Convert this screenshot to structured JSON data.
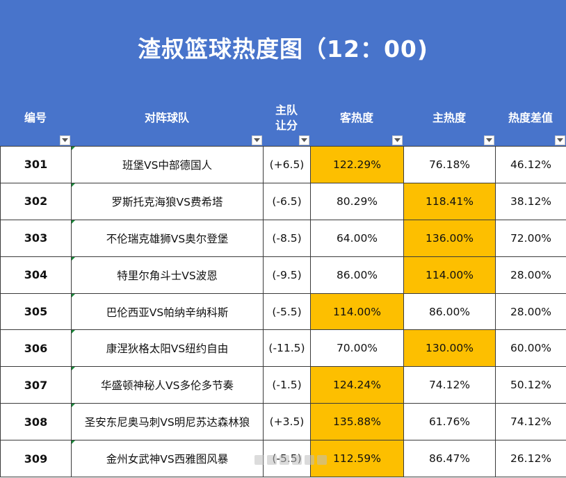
{
  "title": "渣叔篮球热度图（12：00)",
  "columns": {
    "id": "编号",
    "match": "对阵球队",
    "handicap_line1": "主队",
    "handicap_line2": "让分",
    "away_heat": "客热度",
    "home_heat": "主热度",
    "diff": "热度差值"
  },
  "rows": [
    {
      "id": "301",
      "match": "班堡VS中部德国人",
      "handicap": "(+6.5)",
      "away": "122.29%",
      "home": "76.18%",
      "diff": "46.12%",
      "hot": "away"
    },
    {
      "id": "302",
      "match": "罗斯托克海狼VS费希塔",
      "handicap": "(-6.5)",
      "away": "80.29%",
      "home": "118.41%",
      "diff": "38.12%",
      "hot": "home"
    },
    {
      "id": "303",
      "match": "不伦瑞克雄狮VS奥尔登堡",
      "handicap": "(-8.5)",
      "away": "64.00%",
      "home": "136.00%",
      "diff": "72.00%",
      "hot": "home"
    },
    {
      "id": "304",
      "match": "特里尔角斗士VS波恩",
      "handicap": "(-9.5)",
      "away": "86.00%",
      "home": "114.00%",
      "diff": "28.00%",
      "hot": "home"
    },
    {
      "id": "305",
      "match": "巴伦西亚VS帕纳辛纳科斯",
      "handicap": "(-5.5)",
      "away": "114.00%",
      "home": "86.00%",
      "diff": "28.00%",
      "hot": "away"
    },
    {
      "id": "306",
      "match": "康涅狄格太阳VS纽约自由",
      "handicap": "(-11.5)",
      "away": "70.00%",
      "home": "130.00%",
      "diff": "60.00%",
      "hot": "home"
    },
    {
      "id": "307",
      "match": "华盛顿神秘人VS多伦多节奏",
      "handicap": "(-1.5)",
      "away": "124.24%",
      "home": "74.12%",
      "diff": "50.12%",
      "hot": "away"
    },
    {
      "id": "308",
      "match": "圣安东尼奥马刺VS明尼苏达森林狼",
      "handicap": "(+3.5)",
      "away": "135.88%",
      "home": "61.76%",
      "diff": "74.12%",
      "hot": "away"
    },
    {
      "id": "309",
      "match": "金州女武神VS西雅图风暴",
      "handicap": "(-5.5)",
      "away": "112.59%",
      "home": "86.47%",
      "diff": "26.12%",
      "hot": "away"
    }
  ],
  "colors": {
    "header_bg": "#4874cb",
    "highlight": "#fdbf00"
  },
  "icons": {
    "filter": "dropdown-filter-icon"
  }
}
